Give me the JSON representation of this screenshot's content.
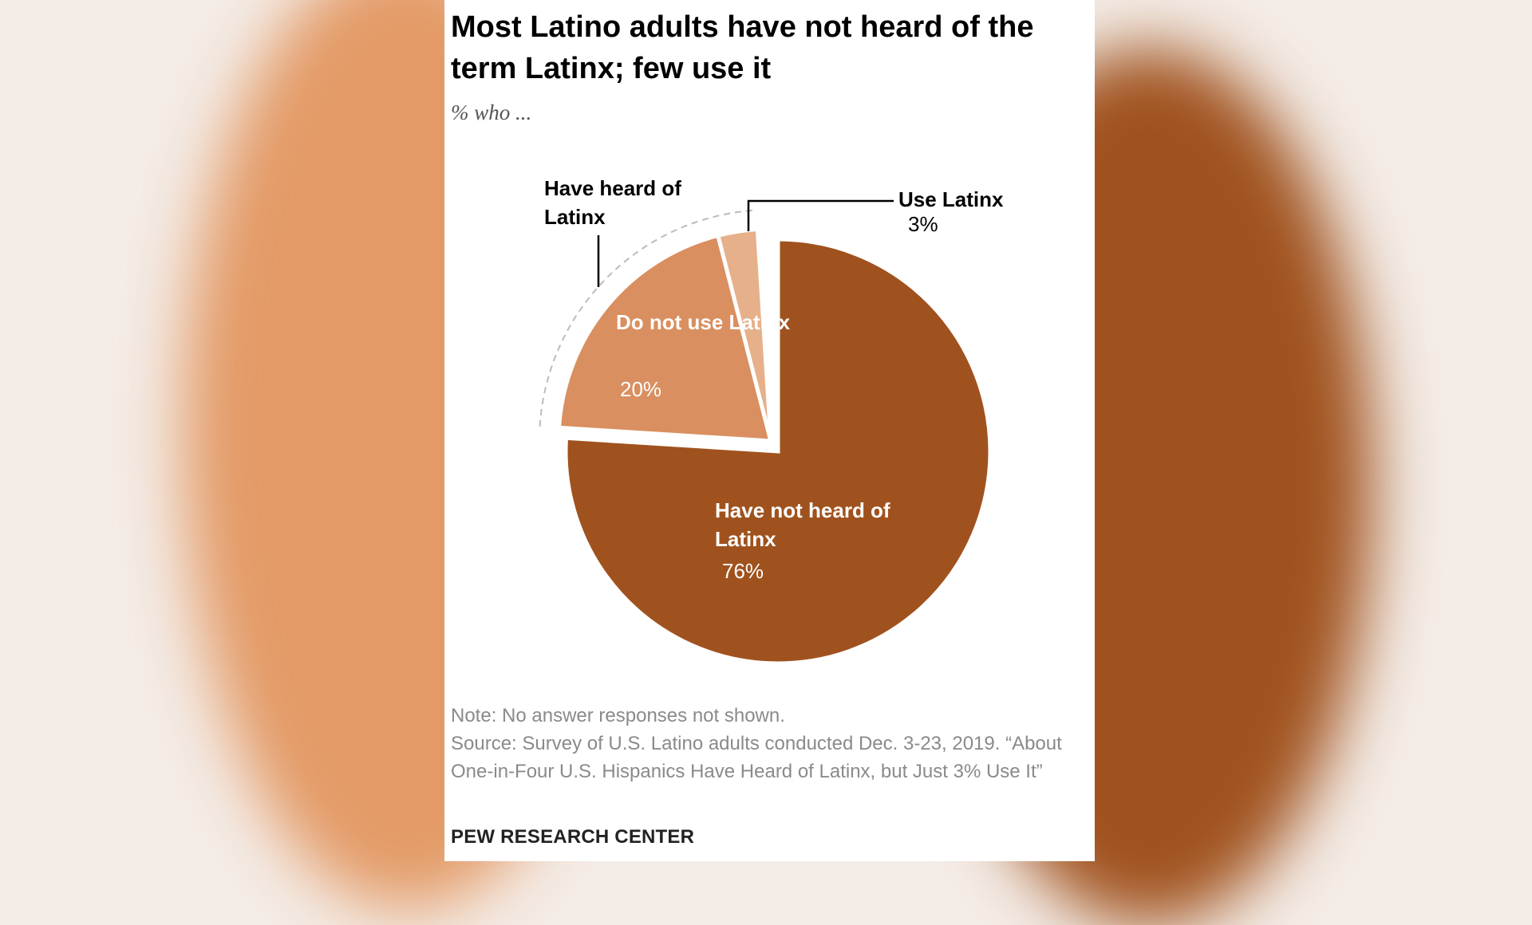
{
  "chart_data": {
    "type": "pie",
    "title": "Most Latino adults have not heard of the term Latinx; few use it",
    "subtitle": "% who ...",
    "categories": [
      "Have not heard of Latinx",
      "Do not use Latinx",
      "Use Latinx"
    ],
    "values": [
      76,
      20,
      3
    ],
    "value_labels": [
      "76%",
      "20%",
      "3%"
    ],
    "colors": [
      "#a0521e",
      "#d98f5f",
      "#e6b08a"
    ],
    "group_label": "Have heard of Latinx",
    "note": "Note: No answer responses not shown.",
    "source": "Source: Survey of U.S. Latino adults conducted Dec. 3-23, 2019. “About One-in-Four U.S. Hispanics Have Heard of Latinx, but Just 3% Use It”",
    "credit": "PEW RESEARCH CENTER"
  }
}
